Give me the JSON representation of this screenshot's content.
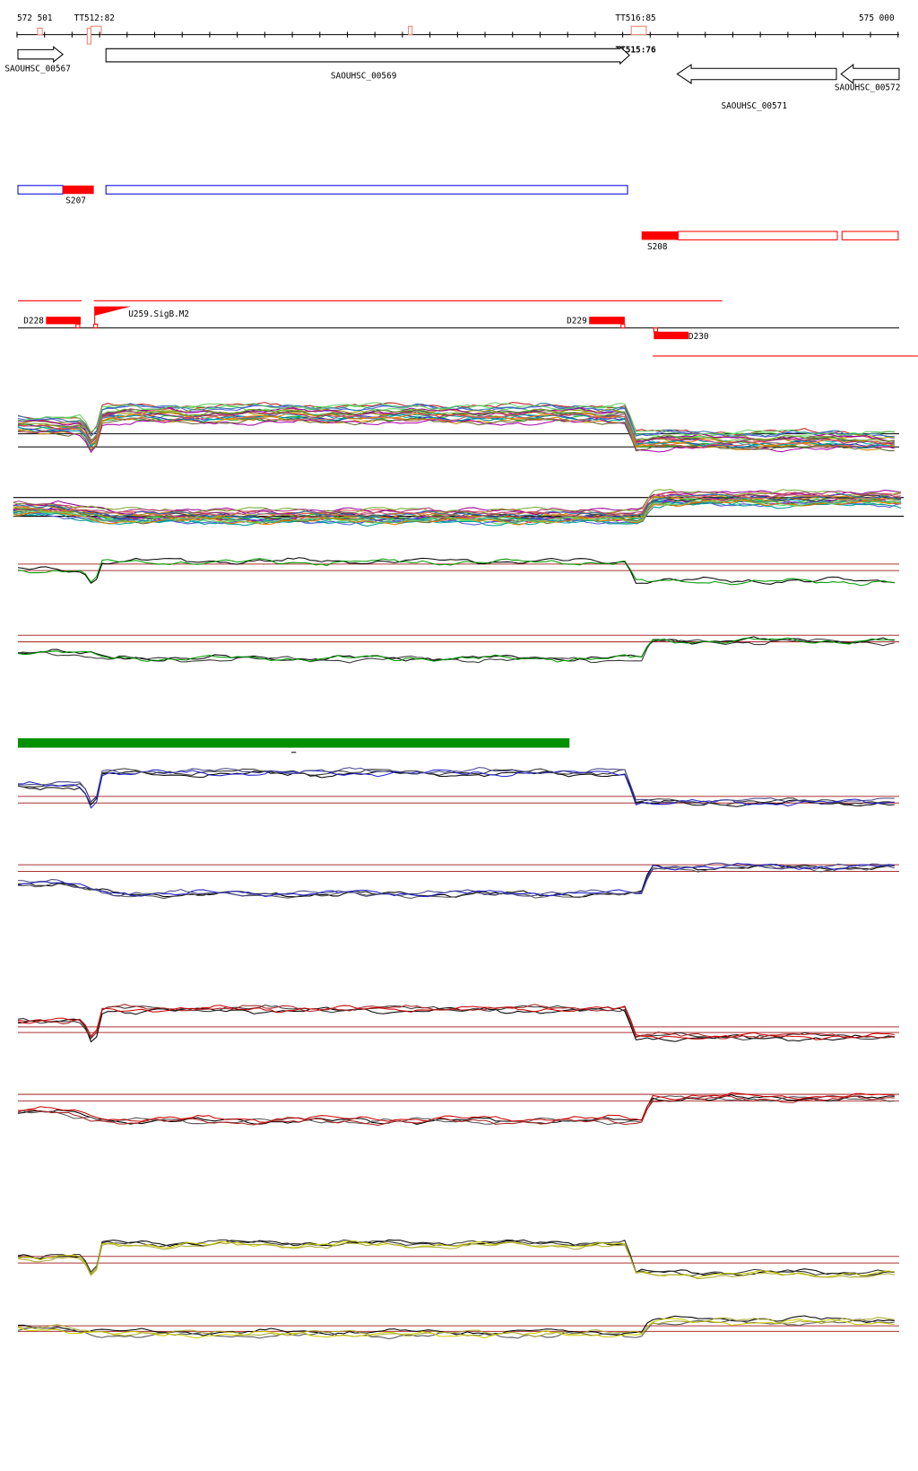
{
  "ruler": {
    "start": "572 501",
    "end": "575 000"
  },
  "terminators": [
    "TT512:82",
    "TT516:85",
    "TT515:76"
  ],
  "genes": [
    "SAOUHSC_00567",
    "SAOUHSC_00569",
    "SAOUHSC_00571",
    "SAOUHSC_00572"
  ],
  "segments": [
    "S207",
    "S208"
  ],
  "features": [
    "D228",
    "U259.SigB.M2",
    "D229",
    "D230"
  ]
}
